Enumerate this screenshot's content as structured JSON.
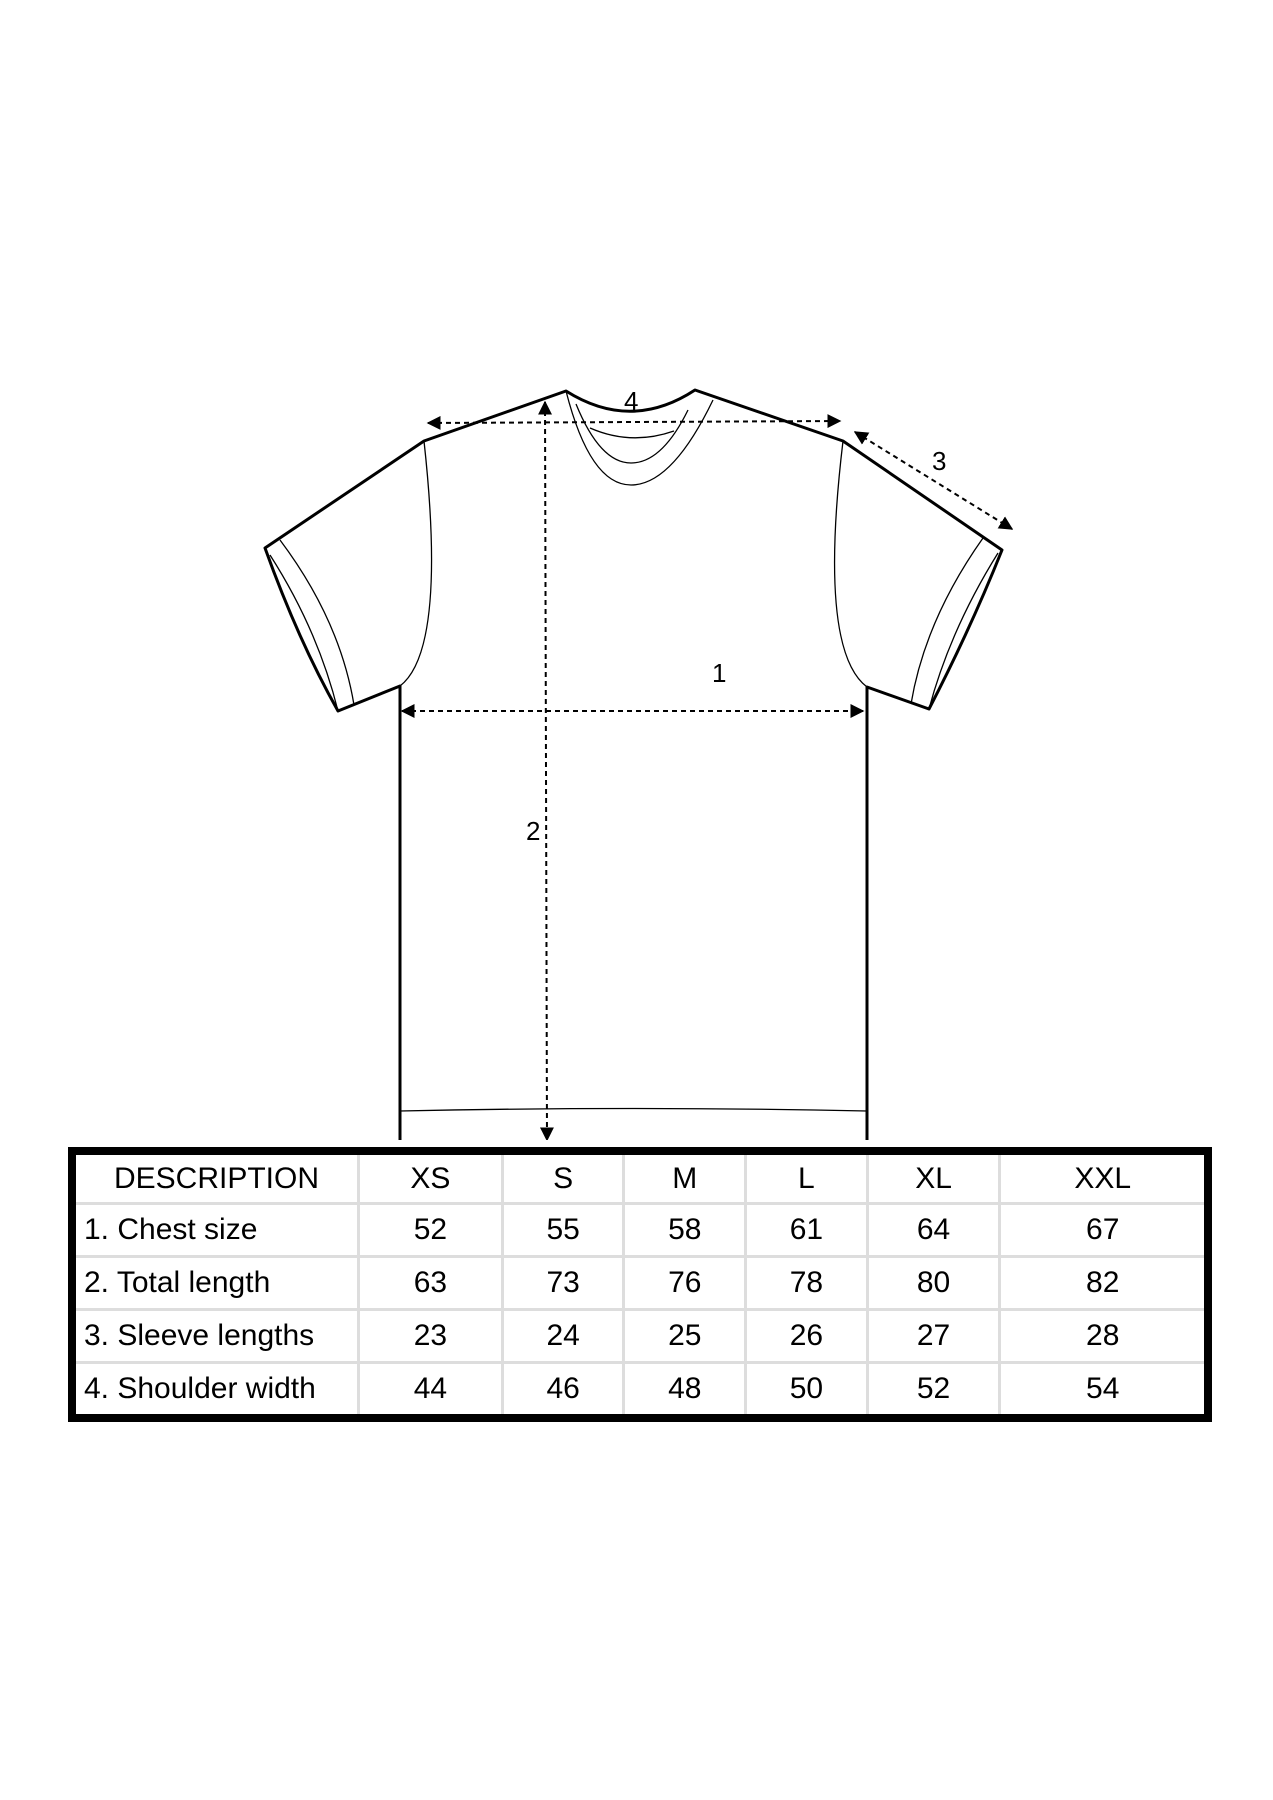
{
  "diagram": {
    "labels": {
      "chest": "1",
      "length": "2",
      "sleeve": "3",
      "shoulder": "4"
    }
  },
  "table": {
    "headers": [
      "DESCRIPTION",
      "XS",
      "S",
      "M",
      "L",
      "XL",
      "XXL"
    ],
    "rows": [
      {
        "label": "1. Chest size",
        "values": [
          "52",
          "55",
          "58",
          "61",
          "64",
          "67"
        ]
      },
      {
        "label": "2. Total length",
        "values": [
          "63",
          "73",
          "76",
          "78",
          "80",
          "82"
        ]
      },
      {
        "label": "3. Sleeve lengths",
        "values": [
          "23",
          "24",
          "25",
          "26",
          "27",
          "28"
        ]
      },
      {
        "label": "4. Shoulder width",
        "values": [
          "44",
          "46",
          "48",
          "50",
          "52",
          "54"
        ]
      }
    ]
  }
}
